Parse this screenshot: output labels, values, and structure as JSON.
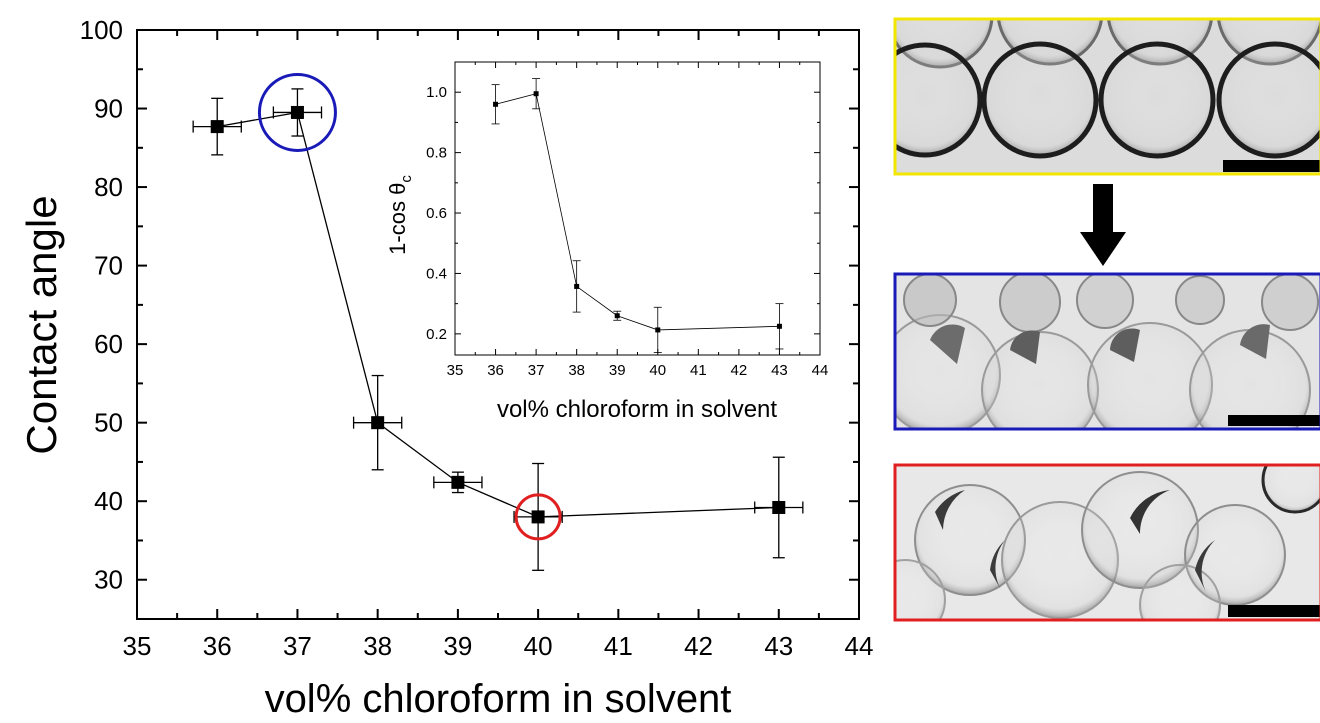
{
  "chart_data": [
    {
      "type": "scatter",
      "xlabel": "vol% chloroform in solvent",
      "ylabel": "Contact angle",
      "xlim": [
        35,
        44
      ],
      "ylim": [
        25,
        100
      ],
      "xticks": [
        35,
        36,
        37,
        38,
        39,
        40,
        41,
        42,
        43,
        44
      ],
      "yticks": [
        30,
        40,
        50,
        60,
        70,
        80,
        90,
        100
      ],
      "grid": false,
      "connected": true,
      "series": [
        {
          "x": [
            36,
            37,
            38,
            39,
            40,
            43
          ],
          "y": [
            87.7,
            89.5,
            50,
            42.4,
            38,
            39.2
          ],
          "yerr": [
            3.6,
            3.0,
            6.0,
            1.3,
            6.8,
            6.4
          ],
          "xerr": [
            0.3,
            0.3,
            0.3,
            0.3,
            0.3,
            0.3
          ]
        }
      ],
      "annotations": [
        {
          "shape": "circle",
          "color": "#1a1ab8",
          "x": 37,
          "y": 89.5
        },
        {
          "shape": "circle",
          "color": "#e02020",
          "x": 40,
          "y": 38
        }
      ]
    },
    {
      "type": "scatter",
      "xlabel": "vol% chloroform in solvent",
      "ylabel": "1-cos θ",
      "ylabel_sub": "c",
      "xlim": [
        35,
        44
      ],
      "ylim": [
        0.13,
        1.1
      ],
      "xticks": [
        35,
        36,
        37,
        38,
        39,
        40,
        41,
        42,
        43,
        44
      ],
      "yticks": [
        0.2,
        0.4,
        0.6,
        0.8,
        1.0
      ],
      "ytick_labels": [
        "0.2",
        "0.4",
        "0.6",
        "0.8",
        "1.0"
      ],
      "grid": false,
      "connected": true,
      "series": [
        {
          "x": [
            36,
            37,
            38,
            39,
            40,
            43
          ],
          "y": [
            0.96,
            0.995,
            0.357,
            0.26,
            0.213,
            0.225
          ],
          "yerr": [
            0.065,
            0.05,
            0.085,
            0.015,
            0.075,
            0.075
          ]
        }
      ]
    }
  ],
  "panels": [
    {
      "name": "top",
      "border": "#f2e600"
    },
    {
      "name": "middle",
      "border": "#1a1ab8"
    },
    {
      "name": "bottom",
      "border": "#e02020"
    }
  ],
  "arrow": {
    "icon": "arrow-down-icon",
    "color": "#000000"
  }
}
